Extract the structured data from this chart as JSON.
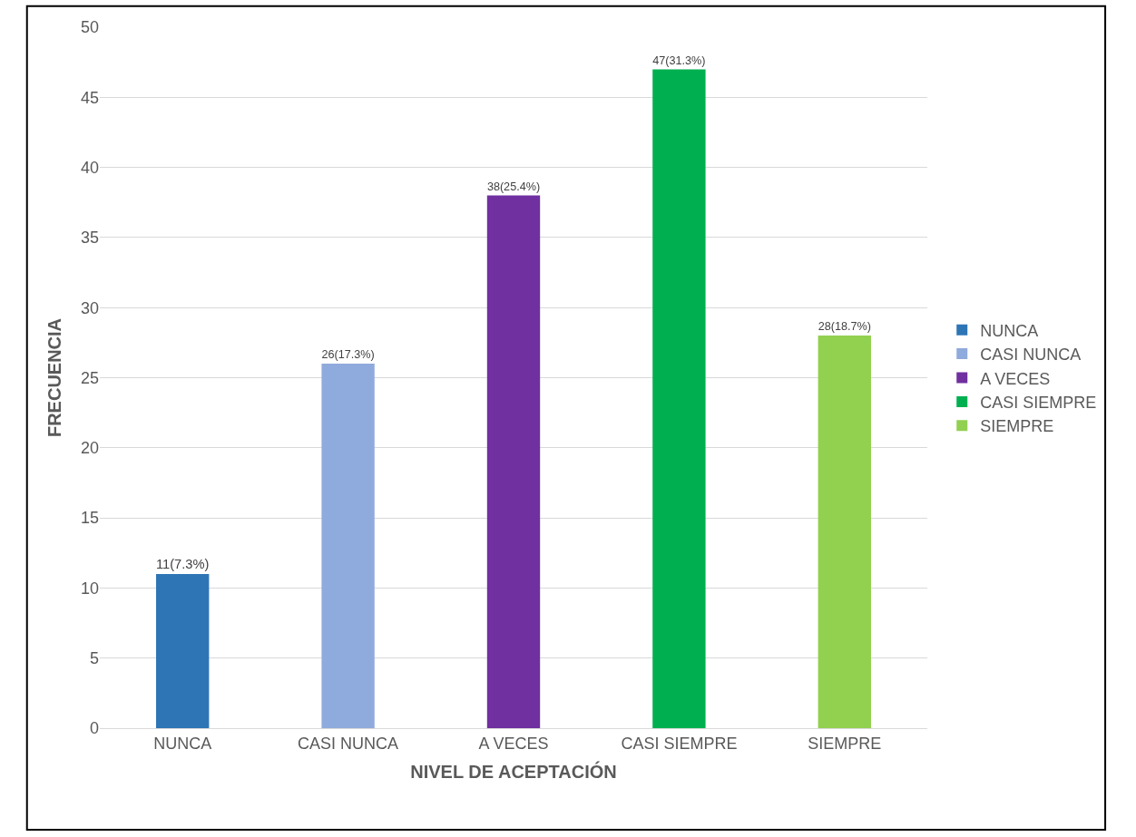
{
  "chart_data": {
    "type": "bar",
    "xlabel": "NIVEL DE ACEPTACIÓN",
    "ylabel": "FRECUENCIA",
    "categories": [
      "NUNCA",
      "CASI NUNCA",
      "A VECES",
      "CASI SIEMPRE",
      "SIEMPRE"
    ],
    "series": [
      {
        "name": "NUNCA",
        "color": "#2e75b6",
        "values": [
          11,
          null,
          null,
          null,
          null
        ],
        "value_labels": [
          "11(7.3%)",
          null,
          null,
          null,
          null
        ]
      },
      {
        "name": "CASI NUNCA",
        "color": "#8faadc",
        "values": [
          null,
          26,
          null,
          null,
          null
        ],
        "value_labels": [
          null,
          "26(17.3%)",
          null,
          null,
          null
        ]
      },
      {
        "name": "A VECES",
        "color": "#7030a0",
        "values": [
          null,
          null,
          38,
          null,
          null
        ],
        "value_labels": [
          null,
          null,
          "38(25.4%)",
          null,
          null
        ]
      },
      {
        "name": "CASI SIEMPRE",
        "color": "#00b050",
        "values": [
          null,
          null,
          null,
          47,
          null
        ],
        "value_labels": [
          null,
          null,
          null,
          "47(31.3%)",
          null
        ]
      },
      {
        "name": "SIEMPRE",
        "color": "#92d050",
        "values": [
          null,
          null,
          null,
          null,
          28
        ],
        "value_labels": [
          null,
          null,
          null,
          null,
          "28(18.7%)"
        ]
      }
    ],
    "ylim": [
      0,
      50
    ],
    "yticks": [
      0,
      5,
      10,
      15,
      20,
      25,
      30,
      35,
      40,
      45,
      50
    ],
    "grid": "y",
    "legend": "right"
  }
}
